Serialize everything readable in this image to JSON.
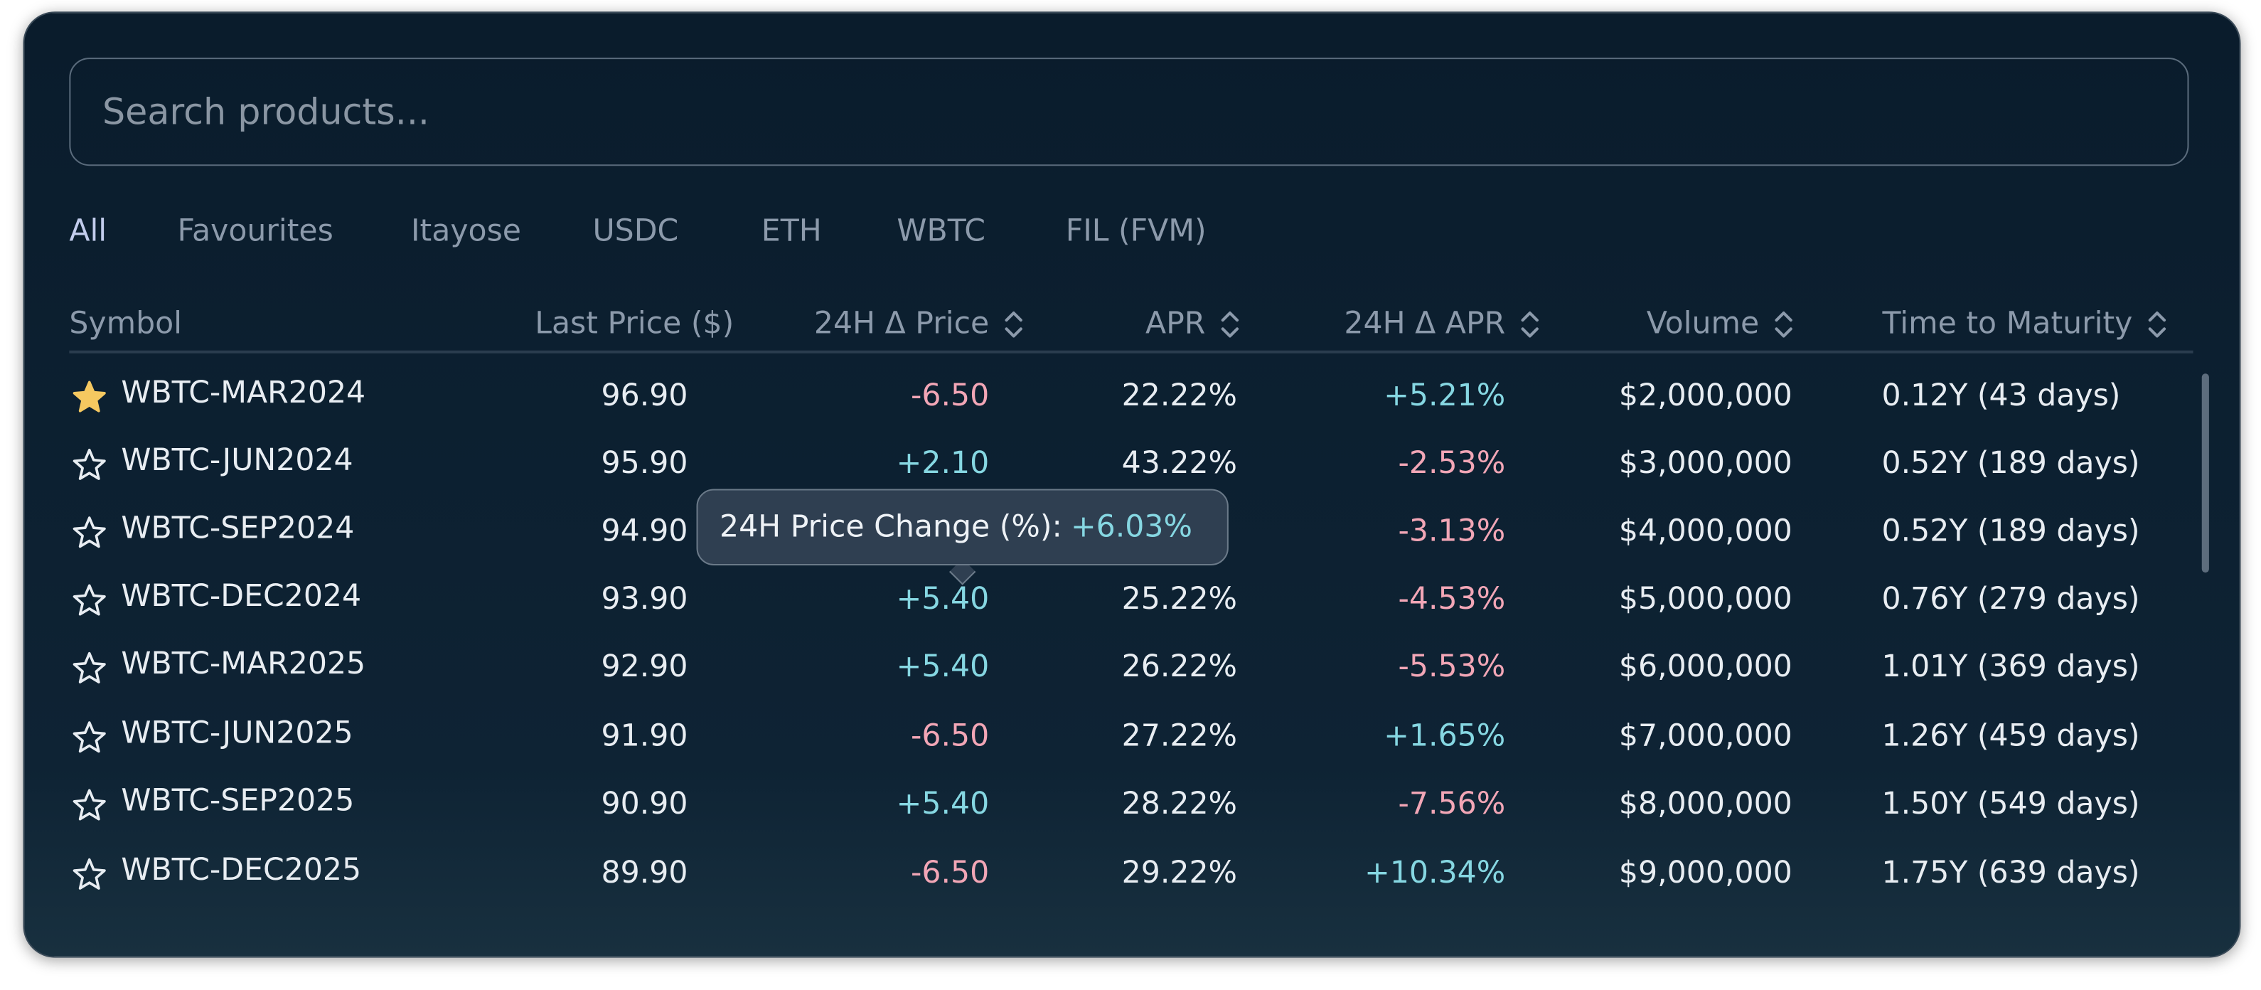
{
  "search": {
    "placeholder": "Search products..."
  },
  "tabs": {
    "items": [
      "All",
      "Favourites",
      "Itayose",
      "USDC",
      "ETH",
      "WBTC",
      "FIL (FVM)"
    ],
    "active": 0
  },
  "table": {
    "columns": [
      {
        "label": "Symbol",
        "sortable": false
      },
      {
        "label": "Last Price ($)",
        "sortable": false
      },
      {
        "label": "24H Δ Price",
        "sortable": true
      },
      {
        "label": "APR",
        "sortable": true
      },
      {
        "label": "24H Δ APR",
        "sortable": true
      },
      {
        "label": "Volume",
        "sortable": true
      },
      {
        "label": "Time to Maturity",
        "sortable": true
      }
    ],
    "rows": [
      {
        "favourite": true,
        "cells": [
          "WBTC-MAR2024",
          "96.90",
          "-6.50",
          "22.22%",
          "+5.21%",
          "$2,000,000",
          "0.12Y (43 days)"
        ]
      },
      {
        "favourite": false,
        "cells": [
          "WBTC-JUN2024",
          "95.90",
          "+2.10",
          "43.22%",
          "-2.53%",
          "$3,000,000",
          "0.52Y (189 days)"
        ]
      },
      {
        "favourite": false,
        "cells": [
          "WBTC-SEP2024",
          "94.90",
          null,
          null,
          "-3.13%",
          "$4,000,000",
          "0.52Y (189 days)"
        ]
      },
      {
        "favourite": false,
        "cells": [
          "WBTC-DEC2024",
          "93.90",
          "+5.40",
          "25.22%",
          "-4.53%",
          "$5,000,000",
          "0.76Y (279 days)"
        ]
      },
      {
        "favourite": false,
        "cells": [
          "WBTC-MAR2025",
          "92.90",
          "+5.40",
          "26.22%",
          "-5.53%",
          "$6,000,000",
          "1.01Y (369 days)"
        ]
      },
      {
        "favourite": false,
        "cells": [
          "WBTC-JUN2025",
          "91.90",
          "-6.50",
          "27.22%",
          "+1.65%",
          "$7,000,000",
          "1.26Y (459 days)"
        ]
      },
      {
        "favourite": false,
        "cells": [
          "WBTC-SEP2025",
          "90.90",
          "+5.40",
          "28.22%",
          "-7.56%",
          "$8,000,000",
          "1.50Y (549 days)"
        ]
      },
      {
        "favourite": false,
        "cells": [
          "WBTC-DEC2025",
          "89.90",
          "-6.50",
          "29.22%",
          "+10.34%",
          "$9,000,000",
          "1.75Y (639 days)"
        ]
      }
    ]
  },
  "tooltip": {
    "label": "24H Price Change (%):",
    "value": "+6.03%"
  }
}
